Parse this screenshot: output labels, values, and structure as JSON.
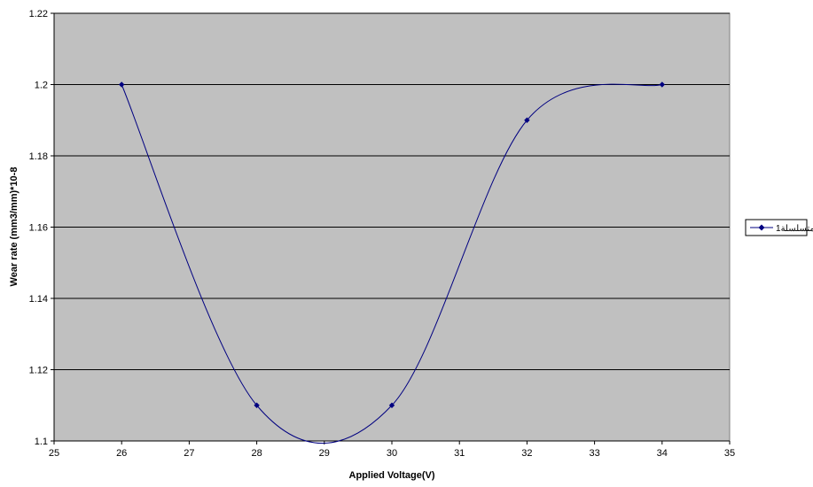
{
  "chart_data": {
    "type": "scatter",
    "title": "",
    "xlabel": "Applied Voltage(V)",
    "ylabel": "Wear rate (mm3/mm)*10-8",
    "xlim": [
      25,
      35
    ],
    "ylim": [
      1.1,
      1.22
    ],
    "xticks": [
      "25",
      "26",
      "27",
      "28",
      "29",
      "30",
      "31",
      "32",
      "33",
      "34",
      "35"
    ],
    "yticks": [
      "1.1",
      "1.12",
      "1.14",
      "1.16",
      "1.18",
      "1.2",
      "1.22"
    ],
    "grid": "horizontal",
    "smooth": true,
    "plot_background": "#c0c0c0",
    "legend_position": "right",
    "series": [
      {
        "name": "متسلسلة1",
        "color": "#000080",
        "marker": "diamond",
        "x": [
          26,
          28,
          30,
          32,
          34
        ],
        "y": [
          1.2,
          1.11,
          1.11,
          1.19,
          1.2
        ]
      }
    ]
  }
}
